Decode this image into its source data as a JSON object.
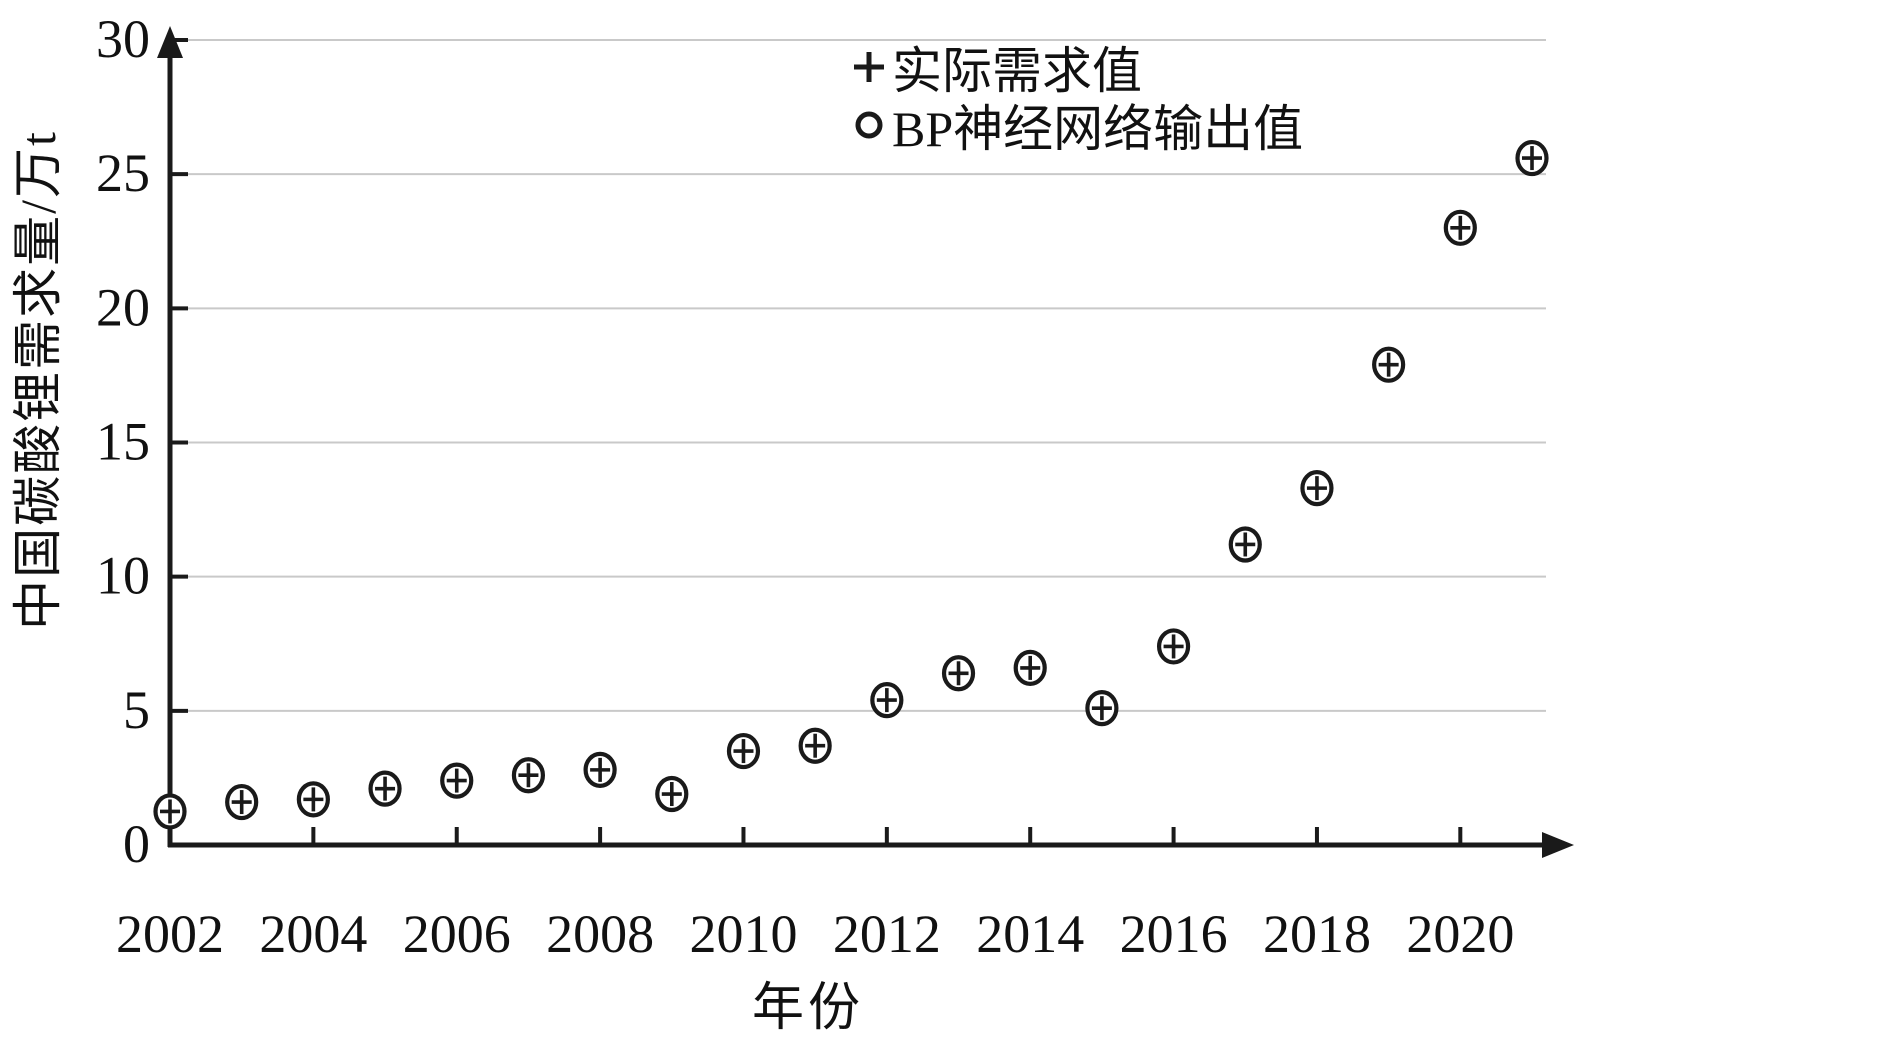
{
  "figure": {
    "background_color": "#ffffff",
    "axis_color": "#1a1a1a",
    "gridline_color": "#c9c9c9",
    "marker_color": "#1a1a1a",
    "text_color": "#111111"
  },
  "legend": {
    "items": [
      {
        "symbol": "plus-marker",
        "label": "实际需求值"
      },
      {
        "symbol": "circle-marker",
        "label": "BP神经网络输出值"
      }
    ]
  },
  "chart_data": {
    "type": "scatter",
    "title": "",
    "xlabel": "年份",
    "ylabel": "中国碳酸锂需求量/万t",
    "x": [
      2002,
      2003,
      2004,
      2005,
      2006,
      2007,
      2008,
      2009,
      2010,
      2011,
      2012,
      2013,
      2014,
      2015,
      2016,
      2017,
      2018,
      2019,
      2020,
      2021
    ],
    "series": [
      {
        "name": "实际需求值",
        "marker": "plus",
        "values": [
          1.25,
          1.6,
          1.7,
          2.1,
          2.4,
          2.6,
          2.8,
          1.9,
          3.5,
          3.7,
          5.4,
          6.4,
          6.6,
          5.1,
          7.4,
          11.2,
          13.3,
          17.9,
          23.0,
          25.6
        ]
      },
      {
        "name": "BP神经网络输出值",
        "marker": "circle",
        "values": [
          1.25,
          1.6,
          1.7,
          2.1,
          2.4,
          2.6,
          2.8,
          1.9,
          3.5,
          3.7,
          5.4,
          6.4,
          6.6,
          5.1,
          7.4,
          11.2,
          13.3,
          17.9,
          23.0,
          25.6
        ]
      }
    ],
    "xlim": [
      2002,
      2021.3
    ],
    "ylim": [
      0,
      30
    ],
    "yticks": [
      0,
      5,
      10,
      15,
      20,
      25,
      30
    ],
    "xtick_years": [
      2002,
      2004,
      2006,
      2008,
      2010,
      2012,
      2014,
      2016,
      2018,
      2020
    ],
    "xtick_labels": [
      "2002",
      "2004",
      "2006",
      "2008",
      "2010",
      "2012",
      "2014",
      "2016",
      "2018",
      "2020"
    ],
    "grid": "horizontal-only",
    "legend_position": "inside-top-right"
  }
}
